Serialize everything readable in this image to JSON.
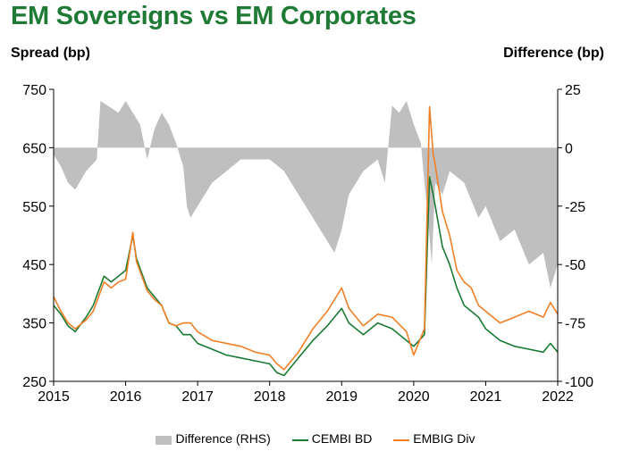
{
  "chart_data": {
    "type": "line",
    "title": "EM Sovereigns vs EM Corporates",
    "ylabel_left": "Spread (bp)",
    "ylabel_right": "Difference (bp)",
    "xlim": [
      2015,
      2022
    ],
    "ylim_left": [
      250,
      750
    ],
    "ylim_right": [
      -100,
      25
    ],
    "xticks": [
      "2015",
      "2016",
      "2017",
      "2018",
      "2019",
      "2020",
      "2021",
      "2022"
    ],
    "yticks_left": [
      "750",
      "650",
      "550",
      "450",
      "350",
      "250"
    ],
    "yticks_right": [
      "25",
      "0",
      "-25",
      "-50",
      "-75",
      "-100"
    ],
    "series": [
      {
        "name": "Difference (RHS)",
        "type": "area",
        "axis": "right",
        "color": "#bfbfbf",
        "x": [
          2015.0,
          2015.1,
          2015.2,
          2015.3,
          2015.45,
          2015.6,
          2015.65,
          2015.75,
          2015.9,
          2016.0,
          2016.1,
          2016.2,
          2016.3,
          2016.4,
          2016.5,
          2016.6,
          2016.7,
          2016.8,
          2016.85,
          2016.9,
          2017.0,
          2017.2,
          2017.4,
          2017.6,
          2017.8,
          2018.0,
          2018.2,
          2018.4,
          2018.6,
          2018.8,
          2018.9,
          2019.0,
          2019.1,
          2019.3,
          2019.5,
          2019.6,
          2019.7,
          2019.8,
          2019.9,
          2020.0,
          2020.1,
          2020.15,
          2020.2,
          2020.25,
          2020.3,
          2020.4,
          2020.5,
          2020.7,
          2020.9,
          2021.0,
          2021.2,
          2021.4,
          2021.6,
          2021.8,
          2021.9,
          2022.0
        ],
        "values": [
          -3,
          -8,
          -15,
          -18,
          -10,
          -5,
          20,
          18,
          15,
          20,
          15,
          10,
          -5,
          8,
          15,
          10,
          2,
          -8,
          -25,
          -30,
          -25,
          -15,
          -10,
          -5,
          -5,
          -5,
          -10,
          -20,
          -30,
          -40,
          -45,
          -35,
          -20,
          -10,
          -5,
          -15,
          18,
          15,
          20,
          10,
          2,
          -15,
          -30,
          -50,
          -15,
          -20,
          -10,
          -15,
          -30,
          -25,
          -40,
          -35,
          -50,
          -45,
          -60,
          -50
        ]
      },
      {
        "name": "CEMBI BD",
        "type": "line",
        "axis": "left",
        "color": "#1a7a33",
        "x": [
          2015.0,
          2015.1,
          2015.2,
          2015.3,
          2015.45,
          2015.55,
          2015.7,
          2015.8,
          2015.9,
          2016.0,
          2016.1,
          2016.15,
          2016.3,
          2016.4,
          2016.5,
          2016.6,
          2016.7,
          2016.8,
          2016.9,
          2017.0,
          2017.2,
          2017.4,
          2017.6,
          2017.8,
          2018.0,
          2018.1,
          2018.2,
          2018.4,
          2018.6,
          2018.8,
          2019.0,
          2019.1,
          2019.3,
          2019.5,
          2019.7,
          2019.9,
          2020.0,
          2020.15,
          2020.22,
          2020.27,
          2020.3,
          2020.4,
          2020.5,
          2020.6,
          2020.7,
          2020.8,
          2020.9,
          2021.0,
          2021.2,
          2021.4,
          2021.6,
          2021.8,
          2021.9,
          2022.0
        ],
        "values": [
          380,
          365,
          345,
          335,
          360,
          380,
          430,
          420,
          430,
          440,
          500,
          460,
          410,
          395,
          380,
          350,
          345,
          330,
          330,
          315,
          305,
          295,
          290,
          285,
          280,
          265,
          260,
          290,
          320,
          345,
          375,
          350,
          330,
          350,
          340,
          320,
          310,
          330,
          600,
          570,
          550,
          480,
          450,
          410,
          380,
          370,
          360,
          340,
          320,
          310,
          305,
          300,
          315,
          300
        ]
      },
      {
        "name": "EMBIG Div",
        "type": "line",
        "axis": "left",
        "color": "#f07f25",
        "x": [
          2015.0,
          2015.1,
          2015.2,
          2015.3,
          2015.45,
          2015.55,
          2015.7,
          2015.8,
          2015.9,
          2016.0,
          2016.1,
          2016.15,
          2016.3,
          2016.4,
          2016.5,
          2016.6,
          2016.7,
          2016.8,
          2016.9,
          2017.0,
          2017.2,
          2017.4,
          2017.6,
          2017.8,
          2018.0,
          2018.1,
          2018.2,
          2018.4,
          2018.6,
          2018.8,
          2019.0,
          2019.1,
          2019.3,
          2019.5,
          2019.7,
          2019.9,
          2020.0,
          2020.15,
          2020.22,
          2020.27,
          2020.3,
          2020.4,
          2020.5,
          2020.6,
          2020.7,
          2020.8,
          2020.9,
          2021.0,
          2021.2,
          2021.4,
          2021.6,
          2021.8,
          2021.9,
          2022.0
        ],
        "values": [
          395,
          370,
          350,
          340,
          355,
          370,
          420,
          410,
          420,
          425,
          505,
          455,
          405,
          390,
          380,
          350,
          345,
          350,
          350,
          335,
          320,
          315,
          310,
          300,
          295,
          280,
          270,
          300,
          340,
          370,
          410,
          375,
          345,
          365,
          360,
          335,
          295,
          340,
          720,
          640,
          620,
          540,
          500,
          440,
          420,
          410,
          380,
          370,
          350,
          360,
          370,
          360,
          385,
          365
        ]
      }
    ]
  },
  "legend": {
    "diff_label": "Difference (RHS)",
    "cembi_label": "CEMBI BD",
    "embig_label": "EMBIG Div"
  }
}
